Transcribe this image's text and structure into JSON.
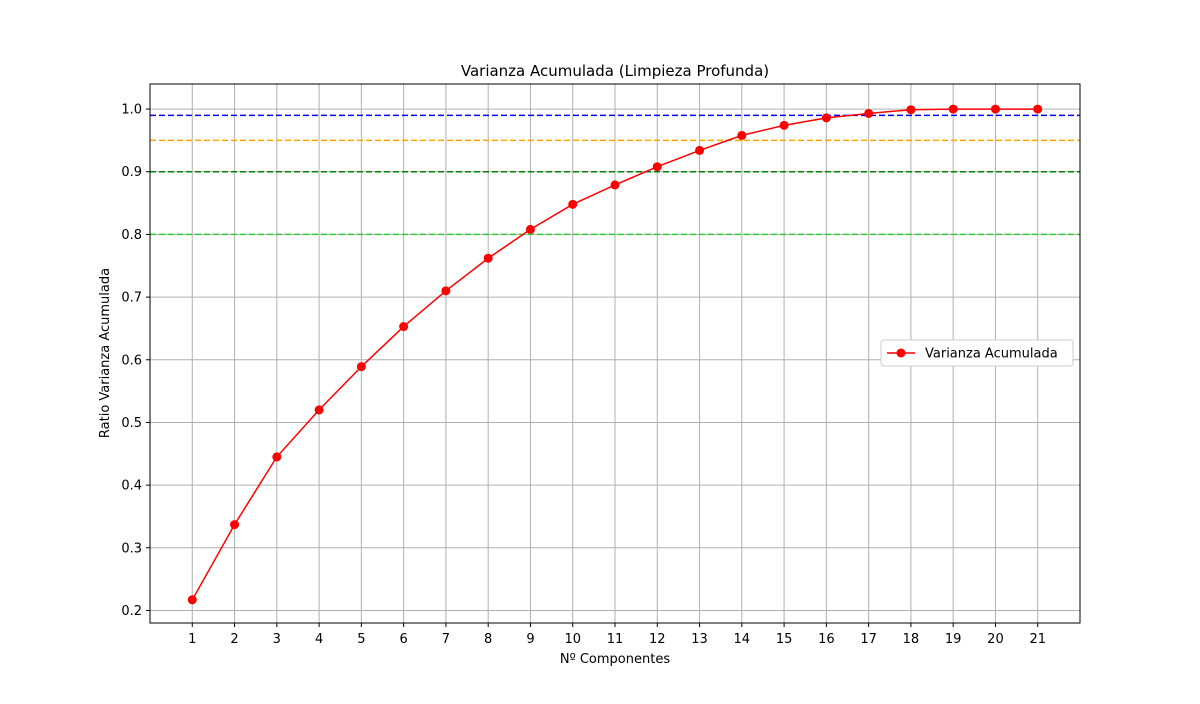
{
  "chart_data": {
    "type": "line",
    "title": "Varianza Acumulada (Limpieza Profunda)",
    "xlabel": "Nº Componentes",
    "ylabel": "Ratio Varianza Acumulada",
    "x": [
      1,
      2,
      3,
      4,
      5,
      6,
      7,
      8,
      9,
      10,
      11,
      12,
      13,
      14,
      15,
      16,
      17,
      18,
      19,
      20,
      21
    ],
    "xlim": [
      0,
      22
    ],
    "ylim": [
      0.18,
      1.04
    ],
    "yticks": [
      "0.2",
      "0.3",
      "0.4",
      "0.5",
      "0.6",
      "0.7",
      "0.8",
      "0.9",
      "1.0"
    ],
    "grid": true,
    "legend_position": "center-right",
    "series": [
      {
        "name": "Varianza Acumulada",
        "color": "#ff0000",
        "values": [
          0.217,
          0.337,
          0.445,
          0.52,
          0.589,
          0.653,
          0.71,
          0.762,
          0.808,
          0.848,
          0.879,
          0.908,
          0.934,
          0.958,
          0.974,
          0.986,
          0.993,
          0.999,
          1.0,
          1.0,
          1.0
        ]
      }
    ],
    "reference_lines": [
      {
        "y": 0.99,
        "color": "#0000ff"
      },
      {
        "y": 0.95,
        "color": "#ffa500"
      },
      {
        "y": 0.9,
        "color": "#008000"
      },
      {
        "y": 0.8,
        "color": "#32cd32"
      }
    ]
  }
}
